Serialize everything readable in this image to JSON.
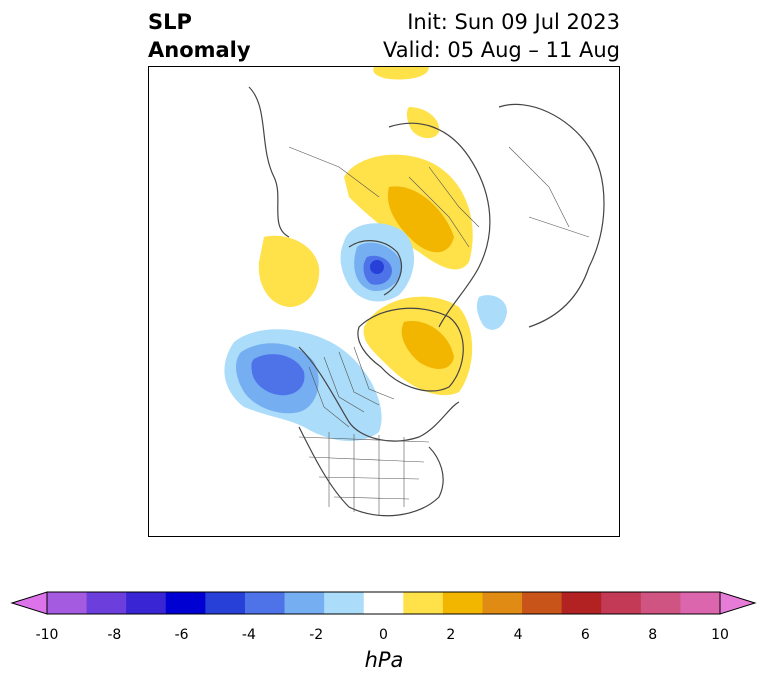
{
  "title": {
    "left_line1": "SLP",
    "left_line2": "Anomaly",
    "right_line1": "Init: Sun 09 Jul 2023",
    "right_line2": "Valid: 05 Aug – 11 Aug"
  },
  "colorbar": {
    "label": "hPa",
    "ticks": [
      "-10",
      "-8",
      "-6",
      "-4",
      "-2",
      "0",
      "2",
      "4",
      "6",
      "8",
      "10"
    ],
    "colors": [
      "#dc73eb",
      "#a45be0",
      "#6c3edc",
      "#3a25d4",
      "#0000d2",
      "#2640d8",
      "#4e73e8",
      "#76aef2",
      "#abdcf9",
      "#ffffff",
      "#ffe14a",
      "#f2b500",
      "#e08c14",
      "#c85419",
      "#b22222",
      "#c23a56",
      "#d05482",
      "#dc66ae",
      "#e77cd8"
    ]
  },
  "map": {
    "features": [
      "negative-anomaly-siberia-pole",
      "negative-anomaly-gulf-of-alaska",
      "positive-anomaly-scandinavia-russia",
      "positive-anomaly-greenland",
      "positive-anomaly-east-asia",
      "negative-anomaly-labrador"
    ]
  }
}
